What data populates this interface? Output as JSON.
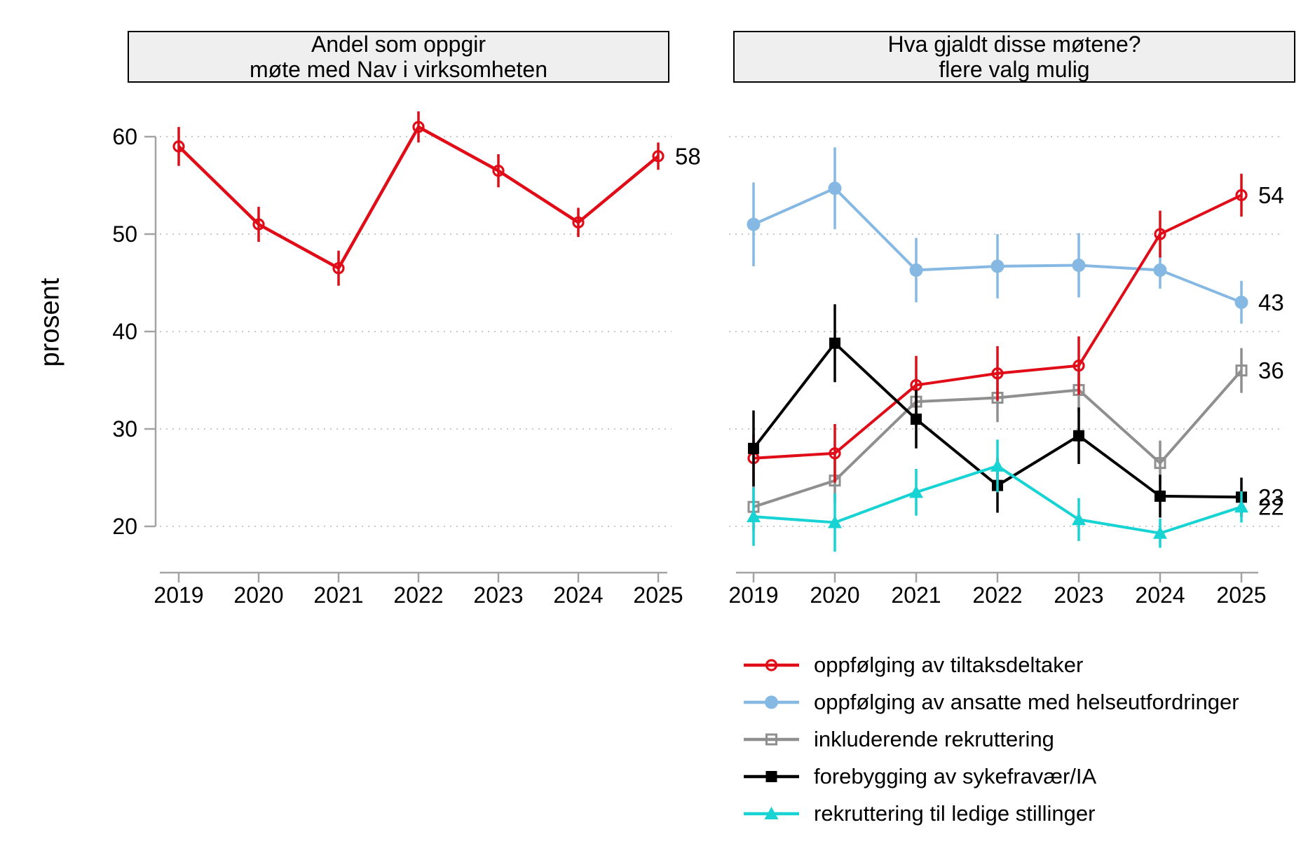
{
  "ylabel": "prosent",
  "colors": {
    "red": "#e00c17",
    "blue": "#85b8e2",
    "gray": "#8f8f8f",
    "black": "#000000",
    "cyan": "#17d3d3",
    "grid": "#c8c8c8",
    "axis": "#a3a3a3",
    "text": "#000000",
    "title_box_bg": "#efefef",
    "title_box_border": "#000000"
  },
  "chart_data": [
    {
      "type": "line",
      "title_lines": [
        "Andel som oppgir",
        "møte med Nav i virksomheten"
      ],
      "ylabel": "prosent",
      "x": [
        "2019",
        "2020",
        "2021",
        "2022",
        "2023",
        "2024",
        "2025"
      ],
      "yticks": [
        20,
        30,
        40,
        50,
        60
      ],
      "ylim": [
        15.3,
        62.5
      ],
      "grid": "horizontal-dotted",
      "error_bars": true,
      "series": [
        {
          "name": "andel som oppgir møte med Nav",
          "color": "red",
          "marker": "open-circle",
          "values": [
            59,
            51,
            46.5,
            61,
            56.5,
            51.2,
            58
          ],
          "errors": [
            2.0,
            1.8,
            1.8,
            1.6,
            1.7,
            1.5,
            1.4
          ],
          "end_label": "58"
        }
      ]
    },
    {
      "type": "line",
      "title_lines": [
        "Hva gjaldt disse møtene?",
        "flere valg mulig"
      ],
      "x": [
        "2019",
        "2020",
        "2021",
        "2022",
        "2023",
        "2024",
        "2025"
      ],
      "yticks": [
        20,
        30,
        40,
        50,
        60
      ],
      "ylim": [
        15.3,
        62.5
      ],
      "grid": "horizontal-dotted",
      "error_bars": true,
      "legend_position": "bottom-right",
      "series": [
        {
          "name": "oppfølging av tiltaksdeltaker",
          "color": "red",
          "marker": "open-circle",
          "values": [
            27,
            27.5,
            34.5,
            35.7,
            36.5,
            50,
            54
          ],
          "errors": [
            2.5,
            3.0,
            3.0,
            2.8,
            3.0,
            2.4,
            2.2
          ],
          "end_label": "54"
        },
        {
          "name": "oppfølging av ansatte med helseutfordringer",
          "color": "blue",
          "marker": "filled-circle",
          "values": [
            51,
            54.7,
            46.3,
            46.7,
            46.8,
            46.3,
            43
          ],
          "errors": [
            4.3,
            4.2,
            3.3,
            3.3,
            3.3,
            1.9,
            2.2
          ],
          "end_label": "43"
        },
        {
          "name": "inkluderende rekruttering",
          "color": "gray",
          "marker": "open-square",
          "values": [
            22,
            24.7,
            32.8,
            33.2,
            34,
            26.5,
            36
          ],
          "errors": [
            2.5,
            2.3,
            2.5,
            2.5,
            2.3,
            2.3,
            2.3
          ],
          "end_label": "36"
        },
        {
          "name": "forebygging av sykefravær/IA",
          "color": "black",
          "marker": "filled-square",
          "values": [
            28,
            38.8,
            31,
            24.2,
            29.3,
            23.1,
            23
          ],
          "errors": [
            3.9,
            4.0,
            3.0,
            2.8,
            2.9,
            2.2,
            2.0
          ],
          "end_label": "23"
        },
        {
          "name": "rekruttering til ledige stillinger",
          "color": "cyan",
          "marker": "filled-triangle",
          "values": [
            21,
            20.4,
            23.5,
            26.2,
            20.7,
            19.3,
            22
          ],
          "errors": [
            3.0,
            3.0,
            2.4,
            2.7,
            2.2,
            1.5,
            1.6
          ],
          "end_label": "22"
        }
      ]
    }
  ]
}
